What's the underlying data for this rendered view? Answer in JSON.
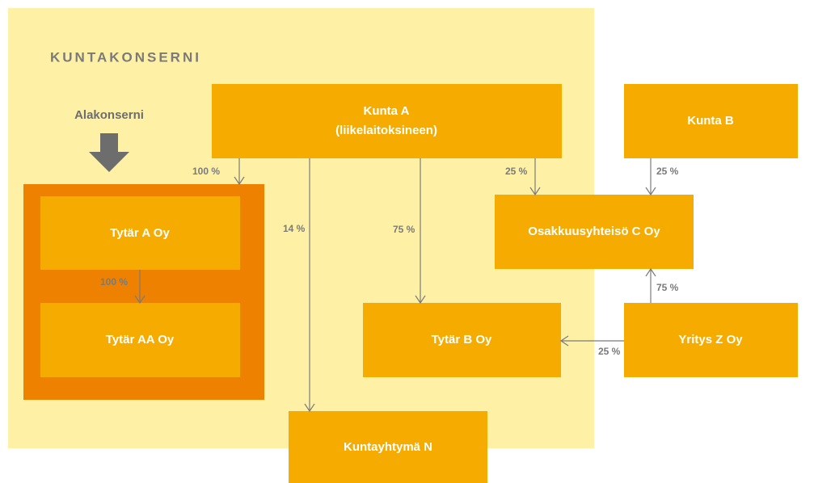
{
  "title": "KUNTAKONSERNI",
  "subgroup_label": "Alakonserni",
  "nodes": [
    {
      "label": "Kunta A",
      "sublabel": "(liikelaitoksineen)"
    },
    {
      "label": "Kunta B"
    },
    {
      "label": "Tytär A Oy"
    },
    {
      "label": "Tytär AA Oy"
    },
    {
      "label": "Osakkuusyhteisö C Oy"
    },
    {
      "label": "Tytär B Oy"
    },
    {
      "label": "Yritys Z Oy"
    },
    {
      "label": "Kuntayhtymä N"
    }
  ],
  "edges": [
    {
      "label": "100 %"
    },
    {
      "label": "100 %"
    },
    {
      "label": "14 %"
    },
    {
      "label": "75 %"
    },
    {
      "label": "25 %"
    },
    {
      "label": "25 %"
    },
    {
      "label": "75 %"
    },
    {
      "label": "25 %"
    }
  ]
}
